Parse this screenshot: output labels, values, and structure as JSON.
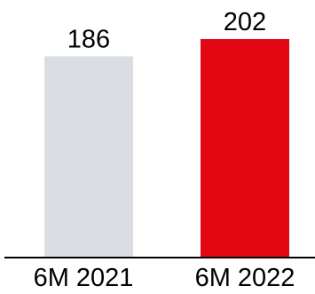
{
  "chart_data": {
    "type": "bar",
    "categories": [
      "6M 2021",
      "6M 2022"
    ],
    "series": [
      {
        "values": [
          186,
          202
        ],
        "colors": [
          "#dadde1",
          "#e30613"
        ]
      }
    ],
    "data_labels": [
      "186",
      "202"
    ],
    "ylim": [
      0,
      202
    ],
    "grid": false,
    "legend": "none",
    "axis_color": "#000000"
  }
}
